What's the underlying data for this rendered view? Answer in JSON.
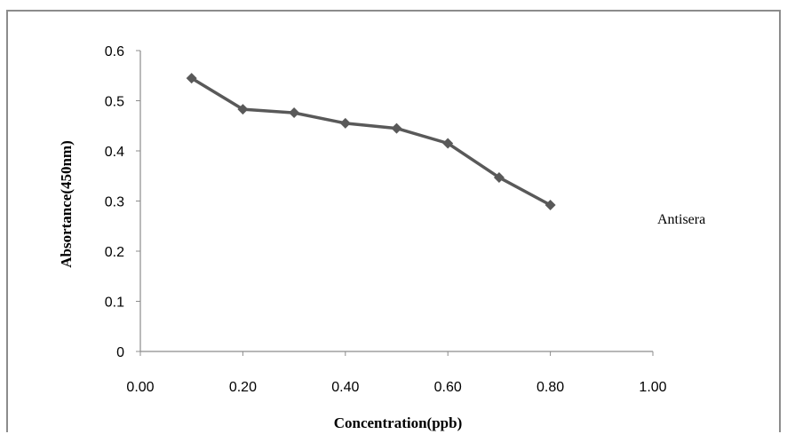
{
  "chart_data": {
    "type": "line",
    "xlabel": "Concentration(ppb)",
    "ylabel": "Absortance(450nm)",
    "xlim": [
      0,
      1
    ],
    "ylim": [
      0,
      0.6
    ],
    "x_ticks": [
      "0.00",
      "0.20",
      "0.40",
      "0.60",
      "0.80",
      "1.00"
    ],
    "y_ticks": [
      "0",
      "0.1",
      "0.2",
      "0.3",
      "0.4",
      "0.5",
      "0.6"
    ],
    "legend_position": "right",
    "series": [
      {
        "name": "Antisera",
        "color": "#595959",
        "marker": "diamond",
        "x": [
          0.1,
          0.2,
          0.3,
          0.4,
          0.5,
          0.6,
          0.7,
          0.8
        ],
        "y": [
          0.545,
          0.483,
          0.476,
          0.455,
          0.445,
          0.415,
          0.347,
          0.292
        ]
      }
    ]
  }
}
